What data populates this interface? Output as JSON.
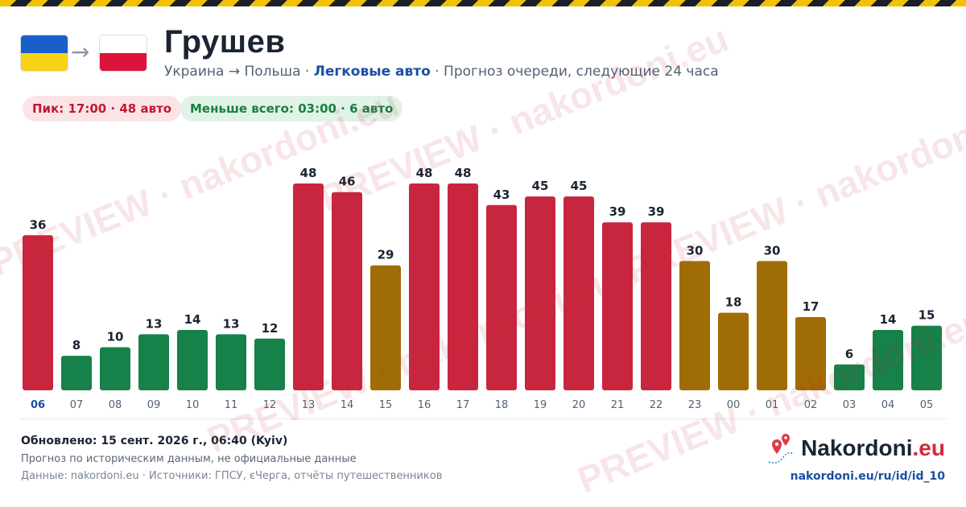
{
  "header": {
    "title": "Грушев",
    "subtitle_route": "Украина → Польша · ",
    "subtitle_highlight": "Легковые авто",
    "subtitle_rest": " · Прогноз очереди, следующие 24 часа",
    "flag_arrow": "→"
  },
  "badges": {
    "peak": "Пик: 17:00 · 48 авто",
    "min": "Меньше всего: 03:00 · 6 авто"
  },
  "watermark": "PREVIEW · nakordoni.eu",
  "chart_data": {
    "type": "bar",
    "categories": [
      "06",
      "07",
      "08",
      "09",
      "10",
      "11",
      "12",
      "13",
      "14",
      "15",
      "16",
      "17",
      "18",
      "19",
      "20",
      "21",
      "22",
      "23",
      "00",
      "01",
      "02",
      "03",
      "04",
      "05"
    ],
    "values": [
      36,
      8,
      10,
      13,
      14,
      13,
      12,
      48,
      46,
      29,
      48,
      48,
      43,
      45,
      45,
      39,
      39,
      30,
      18,
      30,
      17,
      6,
      14,
      15
    ],
    "levels": [
      "high",
      "low",
      "low",
      "low",
      "low",
      "low",
      "low",
      "high",
      "high",
      "mid",
      "high",
      "high",
      "high",
      "high",
      "high",
      "high",
      "high",
      "mid",
      "mid",
      "mid",
      "mid",
      "low",
      "low",
      "low"
    ],
    "colors": {
      "high": "#c8263e",
      "mid": "#a06c05",
      "low": "#168148"
    },
    "highlighted_category": "06",
    "ylim": [
      0,
      48
    ],
    "grid": false,
    "title": "",
    "xlabel": "",
    "ylabel": ""
  },
  "footer": {
    "updated": "Обновлено: 15 сент. 2026 г., 06:40 (Kyiv)",
    "note1": "Прогноз по историческим данным, не официальные данные",
    "note2": "Данные: nakordoni.eu · Источники: ГПСУ, єЧерга, отчёты путешественников"
  },
  "brand": {
    "name": "Nakordoni",
    "tld": ".eu",
    "url": "nakordoni.eu/ru/id/id_10"
  }
}
